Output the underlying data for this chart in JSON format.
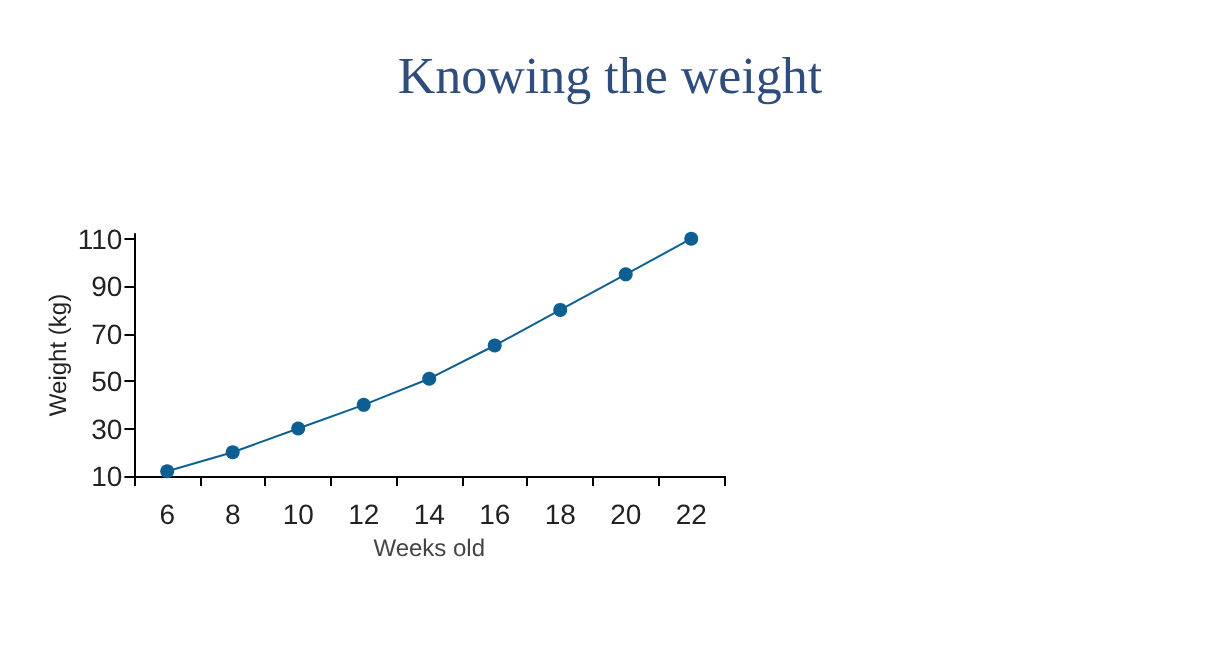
{
  "chart_data": {
    "type": "line",
    "title": "Knowing the weight",
    "xlabel": "Weeks old",
    "ylabel": "Weight (kg)",
    "categories": [
      "6",
      "8",
      "10",
      "12",
      "14",
      "16",
      "18",
      "20",
      "22"
    ],
    "series": [
      {
        "color": "#0d5f91",
        "values": [
          12,
          20,
          30,
          40,
          51,
          65,
          80,
          95,
          110
        ]
      }
    ],
    "ylim": [
      10,
      112
    ],
    "yticks": [
      10,
      30,
      50,
      70,
      90,
      110
    ],
    "grid": false,
    "marker": "circle",
    "line_style": "solid"
  }
}
